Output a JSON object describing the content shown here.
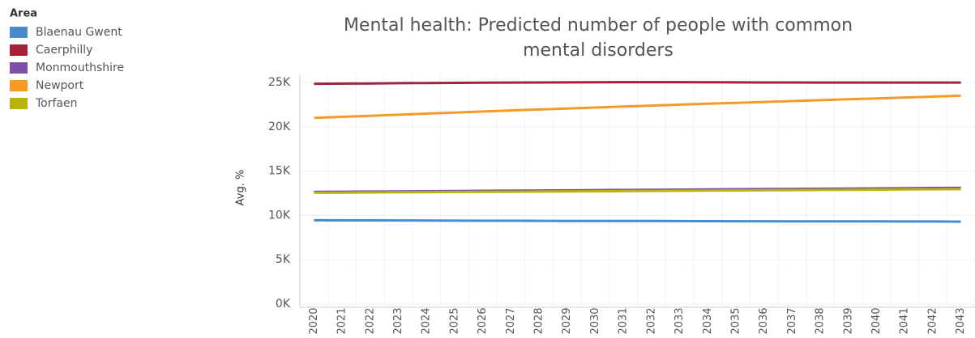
{
  "chart_data": {
    "type": "line",
    "title": "Mental health: Predicted number of people with common mental disorders",
    "title_lines": [
      "Mental health: Predicted number of people with common",
      "mental disorders"
    ],
    "legend_title": "Area",
    "y_label": "Avg. %",
    "categories": [
      "2020",
      "2021",
      "2022",
      "2023",
      "2024",
      "2025",
      "2026",
      "2027",
      "2028",
      "2029",
      "2030",
      "2031",
      "2032",
      "2033",
      "2034",
      "2035",
      "2036",
      "2037",
      "2038",
      "2039",
      "2040",
      "2041",
      "2042",
      "2043"
    ],
    "series": [
      {
        "name": "Blaenau Gwent",
        "color": "#4a8bcb",
        "values": [
          9450,
          9445,
          9440,
          9430,
          9420,
          9410,
          9400,
          9395,
          9390,
          9380,
          9375,
          9370,
          9365,
          9360,
          9350,
          9345,
          9340,
          9335,
          9330,
          9325,
          9320,
          9315,
          9310,
          9300
        ]
      },
      {
        "name": "Caerphilly",
        "color": "#a8213b",
        "values": [
          24850,
          24870,
          24890,
          24910,
          24930,
          24950,
          24970,
          24990,
          25000,
          25010,
          25020,
          25030,
          25030,
          25030,
          25020,
          25010,
          25000,
          25000,
          24990,
          24990,
          24990,
          24990,
          24990,
          24990
        ]
      },
      {
        "name": "Monmouthshire",
        "color": "#7d4fa6",
        "values": [
          12650,
          12670,
          12690,
          12710,
          12730,
          12750,
          12770,
          12790,
          12810,
          12830,
          12850,
          12870,
          12890,
          12910,
          12930,
          12950,
          12970,
          12990,
          13010,
          13030,
          13050,
          13070,
          13090,
          13110
        ]
      },
      {
        "name": "Newport",
        "color": "#f59a25",
        "values": [
          21000,
          21120,
          21240,
          21360,
          21480,
          21600,
          21720,
          21840,
          21950,
          22060,
          22170,
          22280,
          22390,
          22500,
          22600,
          22700,
          22800,
          22900,
          23000,
          23100,
          23200,
          23300,
          23400,
          23500
        ]
      },
      {
        "name": "Torfaen",
        "color": "#b8b40c",
        "values": [
          12550,
          12568,
          12586,
          12604,
          12622,
          12640,
          12658,
          12676,
          12694,
          12712,
          12730,
          12748,
          12766,
          12784,
          12802,
          12820,
          12838,
          12856,
          12874,
          12892,
          12910,
          12928,
          12946,
          12964
        ]
      }
    ],
    "ylim": [
      0,
      26000
    ],
    "yticks": [
      {
        "value": 0,
        "label": "0K"
      },
      {
        "value": 5000,
        "label": "5K"
      },
      {
        "value": 10000,
        "label": "10K"
      },
      {
        "value": 15000,
        "label": "15K"
      },
      {
        "value": 20000,
        "label": "20K"
      },
      {
        "value": 25000,
        "label": "25K"
      }
    ],
    "grid": true
  }
}
